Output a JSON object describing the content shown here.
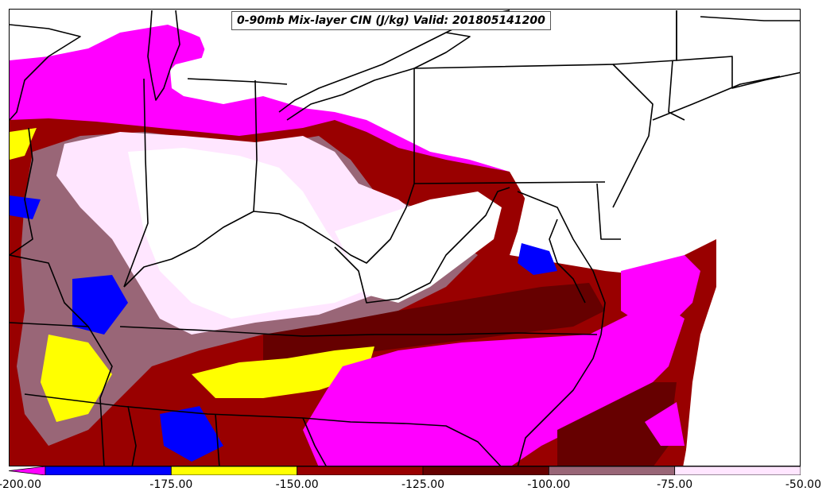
{
  "title": "0-90mb Mix-layer CIN (J/kg) Valid: 201805141200",
  "colorbar": {
    "ticks": [
      "-200.00",
      "-175.00",
      "-150.00",
      "-125.00",
      "-100.00",
      "-75.00",
      "-50.00"
    ],
    "bins": [
      {
        "from": -200,
        "to": -175,
        "color": "#0000ff"
      },
      {
        "from": -175,
        "to": -150,
        "color": "#ffff00"
      },
      {
        "from": -150,
        "to": -125,
        "color": "#990000"
      },
      {
        "from": -125,
        "to": -100,
        "color": "#660000"
      },
      {
        "from": -100,
        "to": -75,
        "color": "#996677"
      },
      {
        "from": -75,
        "to": -50,
        "color": "#ffe6ff"
      }
    ],
    "under_color": "#ff00ff"
  },
  "colors": {
    "magenta": "#ff00ff",
    "blue": "#0000ff",
    "yellow": "#ffff00",
    "red": "#990000",
    "darkred": "#660000",
    "mauve": "#996677",
    "pink": "#ffe6ff",
    "boundary": "#000000"
  }
}
